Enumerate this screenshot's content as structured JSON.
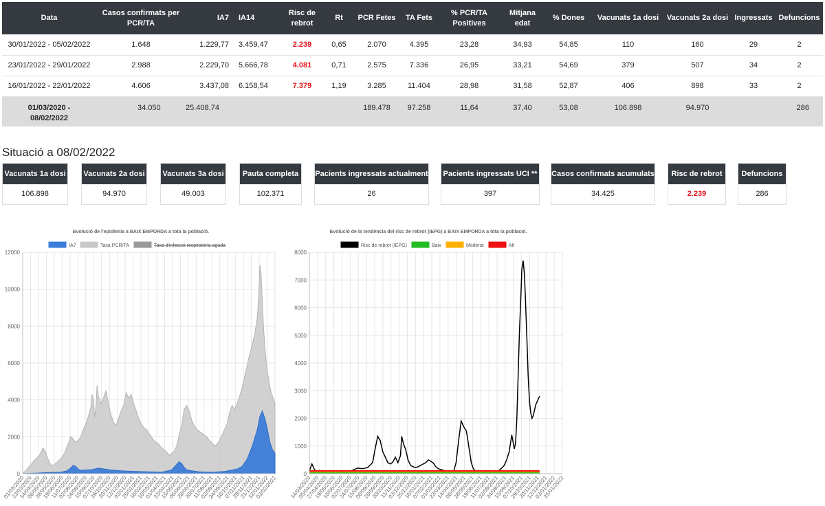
{
  "table": {
    "headers": [
      "Data",
      "Casos confirmats per PCR/TA",
      "IA7",
      "IA14",
      "Risc de rebrot",
      "Rt",
      "PCR Fetes",
      "TA Fets",
      "% PCR/TA Positives",
      "Mitjana edat",
      "% Dones",
      "Vacunats 1a dosi",
      "Vacunats 2a dosi",
      "Ingressats",
      "Defuncions"
    ],
    "rows": [
      [
        "30/01/2022 - 05/02/2022",
        "1.648",
        "1.229,77",
        "3.459,47",
        "2.239",
        "0,65",
        "2.070",
        "4.395",
        "23,28",
        "34,93",
        "54,85",
        "110",
        "160",
        "29",
        "2"
      ],
      [
        "23/01/2022 - 29/01/2022",
        "2.988",
        "2.229,70",
        "5.666,78",
        "4.081",
        "0,71",
        "2.575",
        "7.336",
        "26,95",
        "33,21",
        "54,69",
        "379",
        "507",
        "34",
        "2"
      ],
      [
        "16/01/2022 - 22/01/2022",
        "4.606",
        "3.437,08",
        "6.158,54",
        "7.379",
        "1,19",
        "3.285",
        "11.404",
        "28,98",
        "31,58",
        "52,87",
        "406",
        "898",
        "33",
        "2"
      ]
    ],
    "total": [
      "01/03/2020 - 08/02/2022",
      "34.050",
      "25.408,74",
      "",
      "",
      "",
      "189.478",
      "97.258",
      "11,64",
      "37,40",
      "53,08",
      "106.898",
      "94.970",
      "",
      "286"
    ]
  },
  "situation": {
    "title": "Situació a 08/02/2022",
    "cards": [
      {
        "label": "Vacunats 1a dosi",
        "value": "106.898"
      },
      {
        "label": "Vacunats 2a dosi",
        "value": "94.970"
      },
      {
        "label": "Vacunats 3a dosi",
        "value": "49.003"
      },
      {
        "label": "Pauta completa",
        "value": "102.371"
      },
      {
        "label": "Pacients ingressats actualment",
        "value": "26"
      },
      {
        "label": "Pacients ingressats UCI **",
        "value": "397"
      },
      {
        "label": "Casos confirmats acumulats",
        "value": "34.425"
      },
      {
        "label": "Risc de rebrot",
        "value": "2.239"
      },
      {
        "label": "Defuncions",
        "value": "286"
      }
    ]
  },
  "chart_data": [
    {
      "type": "area",
      "title": "Evolució de l'epidèmia a BAIX EMPORDA a tota la població.",
      "legend": [
        "IA7",
        "Taxa PCR/TA",
        "Taxa d'infecció respiratòria aguda"
      ],
      "colors": {
        "IA7": "#3b7dd8",
        "Taxa PCR/TA": "#c9c9c9",
        "Taxa d'infecció respiratòria aguda": "#9a9a9a"
      },
      "ylim": [
        0,
        12000
      ],
      "yticks": [
        "0",
        "2000",
        "4000",
        "6000",
        "8000",
        "10000",
        "12000"
      ],
      "xticks": [
        "01/03/2020",
        "23/03/2020",
        "14/04/2020",
        "06/05/2020",
        "28/05/2020",
        "19/06/2020",
        "11/07/2020",
        "02/08/2020",
        "24/08/2020",
        "15/09/2020",
        "07/10/2020",
        "29/10/2020",
        "20/11/2020",
        "12/12/2020",
        "03/01/2021",
        "25/01/2021",
        "16/02/2021",
        "10/03/2021",
        "01/04/2021",
        "23/04/2021",
        "15/05/2021",
        "06/06/2021",
        "28/06/2021",
        "20/07/2021",
        "11/08/2021",
        "02/09/2021",
        "24/09/2021",
        "16/10/2021",
        "07/11/2021",
        "29/11/2021",
        "21/12/2021",
        "12/01/2022",
        "03/02/2022"
      ],
      "series": [
        {
          "name": "Taxa PCR/TA",
          "x": [
            0,
            3,
            6,
            9,
            12,
            14,
            16,
            18,
            20,
            22,
            24,
            27,
            30,
            33,
            36,
            38,
            40,
            42,
            44,
            46,
            48,
            50,
            52,
            54,
            55,
            56,
            57,
            58,
            59,
            60,
            62,
            64,
            66,
            68,
            70,
            72,
            74,
            76,
            78,
            80,
            82,
            84,
            86,
            88,
            90,
            92,
            94,
            96,
            98,
            100,
            102,
            104,
            106,
            108,
            110,
            112,
            114,
            116,
            118,
            120,
            122,
            124,
            126,
            128,
            130,
            132,
            134,
            136,
            138,
            140,
            142,
            144,
            146,
            148,
            150,
            152,
            154,
            156,
            158,
            160,
            162,
            164,
            166,
            168,
            170,
            172,
            174,
            176,
            178,
            180,
            182,
            184,
            186,
            187,
            188,
            189,
            190,
            191,
            192,
            193,
            194,
            195,
            196,
            197,
            198,
            199,
            200
          ],
          "values": [
            0,
            200,
            450,
            700,
            900,
            1100,
            1400,
            1200,
            800,
            500,
            450,
            600,
            800,
            1100,
            1600,
            2000,
            1900,
            1700,
            1800,
            2000,
            2400,
            2700,
            3100,
            3600,
            4300,
            4000,
            3100,
            3600,
            4800,
            4200,
            3800,
            4100,
            4500,
            3800,
            3200,
            2800,
            2600,
            3000,
            3400,
            3700,
            4400,
            4100,
            4300,
            3800,
            3400,
            3000,
            2700,
            2500,
            2400,
            2200,
            2000,
            1800,
            1700,
            1600,
            1400,
            1300,
            1200,
            1000,
            1100,
            1200,
            1500,
            2100,
            2600,
            3500,
            3700,
            3400,
            2900,
            2600,
            2400,
            2300,
            2200,
            2100,
            2000,
            1800,
            1700,
            1500,
            1600,
            1800,
            2100,
            2400,
            2700,
            3300,
            3700,
            3500,
            3800,
            4200,
            4700,
            5300,
            5900,
            6500,
            7000,
            7600,
            8500,
            9500,
            11300,
            10800,
            9300,
            7800,
            6900,
            6100,
            5500,
            5100,
            4700,
            4400,
            4200,
            4000,
            3800
          ]
        },
        {
          "name": "IA7",
          "x": [
            0,
            10,
            20,
            30,
            35,
            38,
            40,
            42,
            44,
            46,
            50,
            55,
            60,
            65,
            70,
            80,
            90,
            100,
            110,
            118,
            122,
            124,
            126,
            128,
            130,
            135,
            140,
            150,
            160,
            170,
            174,
            178,
            182,
            186,
            188,
            190,
            192,
            194,
            196,
            198,
            200
          ],
          "values": [
            0,
            30,
            60,
            80,
            150,
            300,
            450,
            400,
            250,
            180,
            200,
            220,
            300,
            250,
            200,
            150,
            120,
            100,
            80,
            200,
            500,
            650,
            550,
            350,
            200,
            150,
            100,
            80,
            120,
            250,
            400,
            800,
            1500,
            2400,
            3100,
            3400,
            3000,
            2400,
            1700,
            1300,
            1100
          ]
        }
      ]
    },
    {
      "type": "line",
      "title": "Evolució de la tendència del risc de rebrot (IEPG) a BAIX EMPORDA a tota la població.",
      "legend": [
        "Risc de rebrot (IEPG)",
        "Baix",
        "Moderat",
        "Alt"
      ],
      "colors": {
        "Risc de rebrot (IEPG)": "#000000",
        "Baix": "#22bb22",
        "Moderat": "#ffb000",
        "Alt": "#ee1111"
      },
      "ylim": [
        0,
        8000
      ],
      "yticks": [
        "0",
        "1000",
        "2000",
        "3000",
        "4000",
        "5000",
        "6000",
        "7000",
        "8000"
      ],
      "xticks": [
        "14/03/2020",
        "05/04/2020",
        "27/04/2020",
        "19/05/2020",
        "10/06/2020",
        "02/07/2020",
        "24/07/2020",
        "15/08/2020",
        "06/09/2020",
        "28/09/2020",
        "20/10/2020",
        "11/11/2020",
        "03/12/2020",
        "25/12/2020",
        "16/01/2021",
        "07/02/2021",
        "01/03/2021",
        "23/03/2021",
        "14/04/2021",
        "06/05/2021",
        "28/05/2021",
        "19/06/2021",
        "11/07/2021",
        "02/08/2021",
        "24/08/2021",
        "15/09/2021",
        "07/10/2021",
        "29/10/2021",
        "20/11/2021",
        "12/12/2021",
        "03/01/2022",
        "25/01/2022"
      ],
      "series": [
        {
          "name": "Risc de rebrot (IEPG)",
          "x": [
            0,
            2,
            4,
            6,
            8,
            10,
            14,
            18,
            22,
            26,
            30,
            34,
            38,
            42,
            46,
            50,
            52,
            54,
            56,
            58,
            60,
            62,
            64,
            66,
            68,
            70,
            72,
            73,
            74,
            75,
            76,
            77,
            78,
            80,
            82,
            84,
            86,
            88,
            90,
            92,
            94,
            96,
            98,
            100,
            102,
            104,
            106,
            108,
            110,
            112,
            114,
            116,
            118,
            120,
            122,
            124,
            125,
            126,
            127,
            128,
            129,
            130,
            131,
            132,
            133,
            134,
            136,
            138,
            140,
            142,
            144,
            146,
            148,
            150,
            152,
            154,
            156,
            158,
            160,
            162,
            163,
            164,
            165,
            166,
            167,
            168,
            169,
            170,
            171,
            172,
            173,
            174,
            175,
            176,
            177,
            178,
            179,
            180,
            181,
            182
          ],
          "values": [
            100,
            350,
            150,
            60,
            120,
            60,
            30,
            20,
            40,
            60,
            80,
            120,
            200,
            180,
            220,
            400,
            900,
            1350,
            1200,
            800,
            600,
            400,
            350,
            420,
            600,
            400,
            650,
            1350,
            1150,
            1000,
            900,
            700,
            500,
            300,
            250,
            220,
            250,
            300,
            350,
            400,
            500,
            450,
            380,
            250,
            180,
            150,
            120,
            100,
            90,
            60,
            80,
            400,
            1200,
            1900,
            1700,
            1550,
            1300,
            1000,
            700,
            400,
            250,
            150,
            120,
            100,
            80,
            60,
            50,
            60,
            80,
            60,
            50,
            60,
            80,
            120,
            200,
            300,
            500,
            800,
            1400,
            900,
            1100,
            2000,
            3500,
            5000,
            6200,
            7400,
            7700,
            7200,
            6100,
            4800,
            3500,
            2600,
            2200,
            2000,
            2100,
            2300,
            2500,
            2600,
            2700,
            2800
          ]
        }
      ],
      "thresholds": {
        "Baix": 30,
        "Moderat": 70,
        "Alt": 100
      }
    }
  ]
}
